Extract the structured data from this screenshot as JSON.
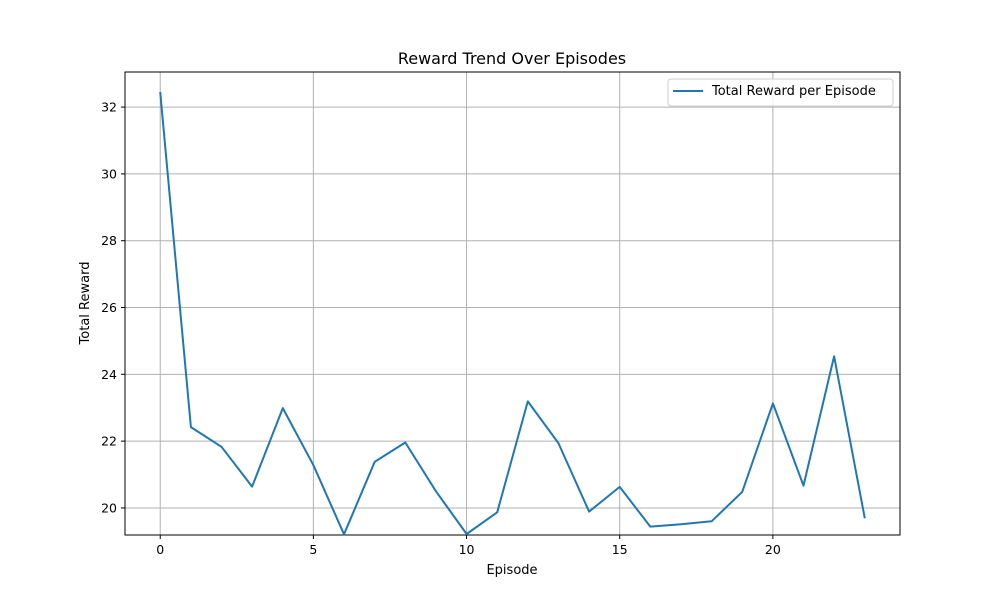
{
  "chart_data": {
    "type": "line",
    "title": "Reward Trend Over Episodes",
    "xlabel": "Episode",
    "ylabel": "Total Reward",
    "xlim": [
      -1.15,
      24.15
    ],
    "ylim": [
      19.19,
      33.05
    ],
    "xticks": [
      0,
      5,
      10,
      15,
      20
    ],
    "yticks": [
      20,
      22,
      24,
      26,
      28,
      30,
      32
    ],
    "grid": true,
    "legend_position": "top-right",
    "series": [
      {
        "name": "Total Reward per Episode",
        "color": "#1f77b4",
        "x": [
          0,
          1,
          2,
          3,
          4,
          5,
          6,
          7,
          8,
          9,
          10,
          11,
          12,
          13,
          14,
          15,
          16,
          17,
          18,
          19,
          20,
          21,
          22,
          23
        ],
        "y": [
          32.45,
          22.42,
          21.83,
          20.64,
          22.99,
          21.28,
          19.21,
          21.38,
          21.96,
          20.5,
          19.22,
          19.87,
          23.19,
          21.94,
          19.89,
          20.63,
          19.44,
          19.51,
          19.6,
          20.48,
          23.13,
          20.67,
          24.54,
          19.69
        ]
      }
    ]
  }
}
